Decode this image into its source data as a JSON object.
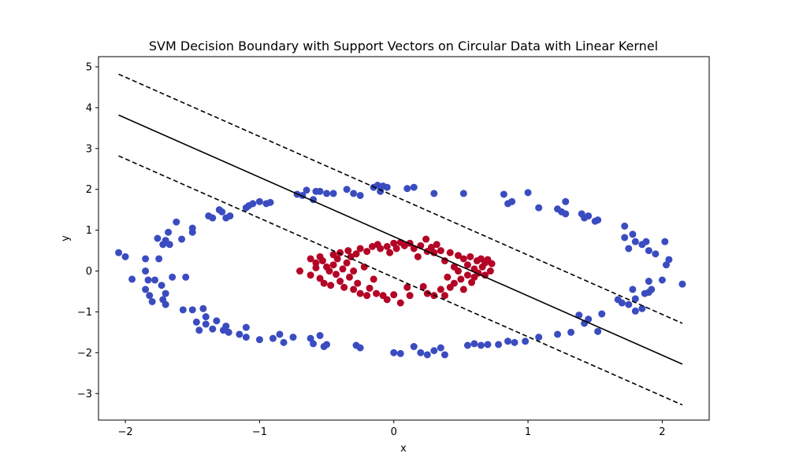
{
  "chart_data": {
    "type": "scatter",
    "title": "SVM Decision Boundary with Support Vectors on Circular Data with Linear Kernel",
    "xlabel": "x",
    "ylabel": "y",
    "xlim": [
      -2.2,
      2.35
    ],
    "ylim": [
      -3.65,
      5.25
    ],
    "xticks": [
      -2,
      -1,
      0,
      1,
      2
    ],
    "xtick_labels": [
      "−2",
      "−1",
      "0",
      "1",
      "2"
    ],
    "yticks": [
      -3,
      -2,
      -1,
      0,
      1,
      2,
      3,
      4,
      5
    ],
    "ytick_labels": [
      "−3",
      "−2",
      "−1",
      "0",
      "1",
      "2",
      "3",
      "4",
      "5"
    ],
    "grid": false,
    "series": [
      {
        "color": "#3b4cc0",
        "points": [
          [
            -2.05,
            0.45
          ],
          [
            -2.0,
            0.35
          ],
          [
            -1.95,
            -0.2
          ],
          [
            -1.85,
            0.3
          ],
          [
            -1.85,
            0.0
          ],
          [
            -1.83,
            -0.22
          ],
          [
            -1.85,
            -0.45
          ],
          [
            -1.82,
            -0.6
          ],
          [
            -1.8,
            -0.75
          ],
          [
            -1.78,
            -0.22
          ],
          [
            -1.76,
            0.8
          ],
          [
            -1.75,
            0.3
          ],
          [
            -1.73,
            -0.35
          ],
          [
            -1.72,
            -0.7
          ],
          [
            -1.72,
            0.65
          ],
          [
            -1.7,
            -0.55
          ],
          [
            -1.7,
            -0.82
          ],
          [
            -1.7,
            0.75
          ],
          [
            -1.68,
            0.95
          ],
          [
            -1.67,
            0.65
          ],
          [
            -1.65,
            -0.15
          ],
          [
            -1.62,
            1.2
          ],
          [
            -1.58,
            0.78
          ],
          [
            -1.55,
            -0.15
          ],
          [
            -1.5,
            1.05
          ],
          [
            -1.5,
            0.95
          ],
          [
            -1.57,
            -0.95
          ],
          [
            -1.5,
            -0.95
          ],
          [
            -1.47,
            -1.25
          ],
          [
            -1.45,
            -1.45
          ],
          [
            -1.42,
            -0.92
          ],
          [
            -1.4,
            -1.3
          ],
          [
            -1.4,
            -1.12
          ],
          [
            -1.38,
            1.35
          ],
          [
            -1.35,
            1.3
          ],
          [
            -1.35,
            -1.42
          ],
          [
            -1.32,
            -1.22
          ],
          [
            -1.3,
            1.5
          ],
          [
            -1.28,
            1.45
          ],
          [
            -1.27,
            -1.45
          ],
          [
            -1.25,
            -1.35
          ],
          [
            -1.25,
            1.3
          ],
          [
            -1.23,
            -1.5
          ],
          [
            -1.22,
            1.35
          ],
          [
            -1.15,
            -1.55
          ],
          [
            -1.1,
            -1.62
          ],
          [
            -1.1,
            -1.38
          ],
          [
            -1.1,
            1.55
          ],
          [
            -1.08,
            1.6
          ],
          [
            -1.05,
            1.65
          ],
          [
            -1.0,
            -1.68
          ],
          [
            -1.0,
            1.7
          ],
          [
            -0.95,
            1.65
          ],
          [
            -0.92,
            1.68
          ],
          [
            -0.9,
            -1.65
          ],
          [
            -0.85,
            -1.55
          ],
          [
            -0.82,
            -1.75
          ],
          [
            -0.75,
            -1.62
          ],
          [
            -0.72,
            1.88
          ],
          [
            -0.68,
            1.85
          ],
          [
            -0.65,
            1.98
          ],
          [
            -0.62,
            -1.65
          ],
          [
            -0.6,
            -1.78
          ],
          [
            -0.58,
            1.95
          ],
          [
            -0.55,
            -1.58
          ],
          [
            -0.6,
            1.75
          ],
          [
            -0.55,
            1.95
          ],
          [
            -0.52,
            -1.85
          ],
          [
            -0.5,
            -1.8
          ],
          [
            -0.5,
            1.9
          ],
          [
            -0.45,
            1.9
          ],
          [
            -0.35,
            2.0
          ],
          [
            -0.3,
            1.9
          ],
          [
            -0.28,
            -1.82
          ],
          [
            -0.25,
            -1.88
          ],
          [
            -0.25,
            1.85
          ],
          [
            -0.15,
            2.05
          ],
          [
            -0.12,
            2.1
          ],
          [
            -0.08,
            2.08
          ],
          [
            -0.05,
            2.05
          ],
          [
            -0.1,
            1.95
          ],
          [
            0.0,
            -2.0
          ],
          [
            0.05,
            -2.02
          ],
          [
            0.1,
            2.02
          ],
          [
            0.15,
            2.05
          ],
          [
            0.15,
            -1.85
          ],
          [
            0.2,
            -2.0
          ],
          [
            0.25,
            -2.05
          ],
          [
            0.3,
            -1.95
          ],
          [
            0.3,
            1.9
          ],
          [
            0.35,
            -1.88
          ],
          [
            0.38,
            -2.05
          ],
          [
            0.52,
            1.9
          ],
          [
            0.55,
            -1.82
          ],
          [
            0.6,
            -1.78
          ],
          [
            0.65,
            -1.82
          ],
          [
            0.7,
            -1.8
          ],
          [
            0.78,
            -1.8
          ],
          [
            0.82,
            1.88
          ],
          [
            0.85,
            -1.72
          ],
          [
            0.85,
            1.65
          ],
          [
            0.88,
            1.7
          ],
          [
            0.9,
            -1.75
          ],
          [
            0.98,
            -1.72
          ],
          [
            1.0,
            1.92
          ],
          [
            1.08,
            1.55
          ],
          [
            1.08,
            -1.62
          ],
          [
            1.22,
            -1.55
          ],
          [
            1.22,
            1.52
          ],
          [
            1.25,
            1.45
          ],
          [
            1.28,
            1.4
          ],
          [
            1.28,
            1.7
          ],
          [
            1.32,
            -1.5
          ],
          [
            1.38,
            -1.08
          ],
          [
            1.4,
            1.4
          ],
          [
            1.42,
            1.3
          ],
          [
            1.42,
            -1.28
          ],
          [
            1.45,
            1.35
          ],
          [
            1.45,
            -1.18
          ],
          [
            1.5,
            1.22
          ],
          [
            1.52,
            1.25
          ],
          [
            1.52,
            -1.48
          ],
          [
            1.55,
            -1.05
          ],
          [
            1.67,
            -0.7
          ],
          [
            1.7,
            -0.78
          ],
          [
            1.72,
            0.82
          ],
          [
            1.72,
            1.1
          ],
          [
            1.75,
            0.55
          ],
          [
            1.75,
            -0.82
          ],
          [
            1.78,
            -0.45
          ],
          [
            1.78,
            0.9
          ],
          [
            1.8,
            -0.98
          ],
          [
            1.8,
            0.72
          ],
          [
            1.8,
            -0.68
          ],
          [
            1.85,
            0.65
          ],
          [
            1.85,
            -0.92
          ],
          [
            1.87,
            -0.55
          ],
          [
            1.88,
            0.72
          ],
          [
            1.9,
            -0.52
          ],
          [
            1.9,
            0.5
          ],
          [
            1.9,
            -0.25
          ],
          [
            1.92,
            -0.45
          ],
          [
            1.95,
            0.42
          ],
          [
            2.0,
            -0.22
          ],
          [
            2.02,
            0.72
          ],
          [
            2.03,
            0.15
          ],
          [
            2.05,
            0.28
          ],
          [
            2.15,
            -0.32
          ]
        ]
      },
      {
        "color": "#b40426",
        "points": [
          [
            -0.7,
            0.0
          ],
          [
            -0.62,
            0.3
          ],
          [
            -0.62,
            -0.1
          ],
          [
            -0.58,
            0.2
          ],
          [
            -0.58,
            0.08
          ],
          [
            -0.55,
            0.35
          ],
          [
            -0.55,
            -0.18
          ],
          [
            -0.53,
            0.25
          ],
          [
            -0.52,
            -0.3
          ],
          [
            -0.5,
            0.1
          ],
          [
            -0.48,
            0.0
          ],
          [
            -0.47,
            -0.35
          ],
          [
            -0.45,
            0.15
          ],
          [
            -0.45,
            0.4
          ],
          [
            -0.43,
            -0.08
          ],
          [
            -0.42,
            0.3
          ],
          [
            -0.4,
            -0.25
          ],
          [
            -0.4,
            0.45
          ],
          [
            -0.38,
            0.05
          ],
          [
            -0.37,
            -0.4
          ],
          [
            -0.35,
            0.2
          ],
          [
            -0.34,
            0.5
          ],
          [
            -0.33,
            -0.15
          ],
          [
            -0.32,
            0.35
          ],
          [
            -0.3,
            -0.45
          ],
          [
            -0.3,
            0.0
          ],
          [
            -0.28,
            0.42
          ],
          [
            -0.27,
            -0.3
          ],
          [
            -0.25,
            0.55
          ],
          [
            -0.25,
            -0.55
          ],
          [
            -0.22,
            0.1
          ],
          [
            -0.2,
            -0.6
          ],
          [
            -0.2,
            0.48
          ],
          [
            -0.18,
            -0.42
          ],
          [
            -0.16,
            0.6
          ],
          [
            -0.15,
            -0.2
          ],
          [
            -0.13,
            -0.55
          ],
          [
            -0.12,
            0.65
          ],
          [
            -0.1,
            0.55
          ],
          [
            -0.08,
            -0.6
          ],
          [
            -0.05,
            0.6
          ],
          [
            -0.05,
            -0.7
          ],
          [
            -0.03,
            0.45
          ],
          [
            0.0,
            -0.58
          ],
          [
            0.0,
            0.68
          ],
          [
            0.02,
            0.55
          ],
          [
            0.05,
            -0.78
          ],
          [
            0.05,
            0.7
          ],
          [
            0.08,
            0.62
          ],
          [
            0.1,
            -0.4
          ],
          [
            0.12,
            -0.6
          ],
          [
            0.12,
            0.68
          ],
          [
            0.15,
            0.55
          ],
          [
            0.18,
            0.35
          ],
          [
            0.2,
            0.62
          ],
          [
            0.22,
            -0.38
          ],
          [
            0.24,
            0.78
          ],
          [
            0.25,
            -0.55
          ],
          [
            0.25,
            0.48
          ],
          [
            0.28,
            0.58
          ],
          [
            0.3,
            -0.6
          ],
          [
            0.3,
            0.45
          ],
          [
            0.32,
            0.65
          ],
          [
            0.35,
            -0.45
          ],
          [
            0.35,
            0.5
          ],
          [
            0.38,
            -0.6
          ],
          [
            0.38,
            0.25
          ],
          [
            0.4,
            -0.15
          ],
          [
            0.42,
            0.45
          ],
          [
            0.42,
            -0.4
          ],
          [
            0.45,
            0.1
          ],
          [
            0.45,
            -0.3
          ],
          [
            0.48,
            0.38
          ],
          [
            0.48,
            0.0
          ],
          [
            0.5,
            -0.2
          ],
          [
            0.52,
            0.3
          ],
          [
            0.52,
            -0.45
          ],
          [
            0.55,
            0.15
          ],
          [
            0.55,
            -0.1
          ],
          [
            0.57,
            0.35
          ],
          [
            0.58,
            -0.28
          ],
          [
            0.6,
            0.05
          ],
          [
            0.6,
            -0.15
          ],
          [
            0.62,
            0.25
          ],
          [
            0.63,
            -0.05
          ],
          [
            0.65,
            0.3
          ],
          [
            0.66,
            0.1
          ],
          [
            0.68,
            -0.1
          ],
          [
            0.68,
            0.2
          ],
          [
            0.7,
            0.28
          ],
          [
            0.72,
            0.0
          ],
          [
            0.73,
            0.18
          ]
        ]
      }
    ],
    "lines": [
      {
        "style": "solid",
        "points": [
          [
            -2.05,
            3.82
          ],
          [
            2.15,
            -2.28
          ]
        ]
      },
      {
        "style": "dashed",
        "points": [
          [
            -2.05,
            4.82
          ],
          [
            2.15,
            -1.28
          ]
        ]
      },
      {
        "style": "dashed",
        "points": [
          [
            -2.05,
            2.82
          ],
          [
            2.15,
            -3.28
          ]
        ]
      }
    ]
  }
}
